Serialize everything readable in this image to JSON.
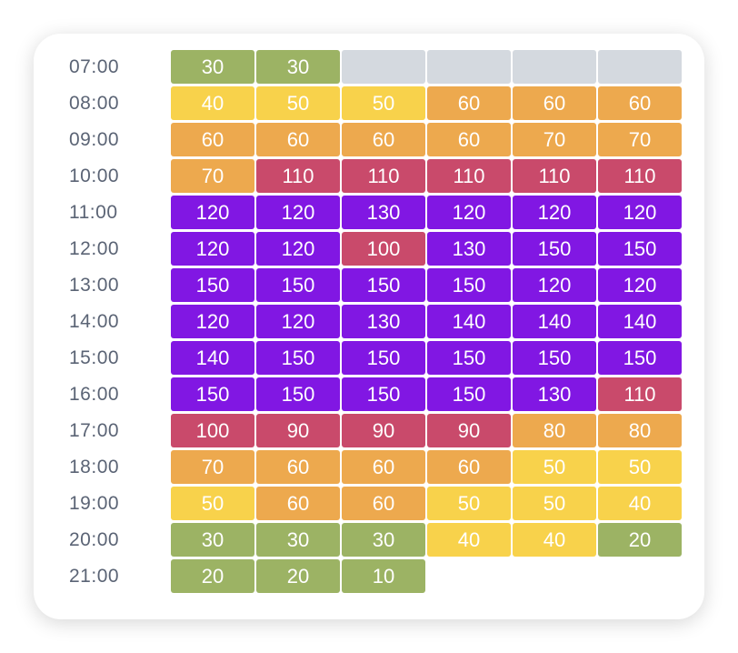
{
  "colors": {
    "green": "#9cb364",
    "yellow": "#f8d24b",
    "orange": "#eda94e",
    "red": "#c94a6b",
    "purple": "#8117e3",
    "gray": "#d4d9df"
  },
  "rows": [
    {
      "time": "07:00",
      "cells": [
        {
          "v": "30",
          "c": "green"
        },
        {
          "v": "30",
          "c": "green"
        },
        {
          "v": "",
          "c": "gray"
        },
        {
          "v": "",
          "c": "gray"
        },
        {
          "v": "",
          "c": "gray"
        },
        {
          "v": "",
          "c": "gray"
        }
      ]
    },
    {
      "time": "08:00",
      "cells": [
        {
          "v": "40",
          "c": "yellow"
        },
        {
          "v": "50",
          "c": "yellow"
        },
        {
          "v": "50",
          "c": "yellow"
        },
        {
          "v": "60",
          "c": "orange"
        },
        {
          "v": "60",
          "c": "orange"
        },
        {
          "v": "60",
          "c": "orange"
        }
      ]
    },
    {
      "time": "09:00",
      "cells": [
        {
          "v": "60",
          "c": "orange"
        },
        {
          "v": "60",
          "c": "orange"
        },
        {
          "v": "60",
          "c": "orange"
        },
        {
          "v": "60",
          "c": "orange"
        },
        {
          "v": "70",
          "c": "orange"
        },
        {
          "v": "70",
          "c": "orange"
        }
      ]
    },
    {
      "time": "10:00",
      "cells": [
        {
          "v": "70",
          "c": "orange"
        },
        {
          "v": "110",
          "c": "red"
        },
        {
          "v": "110",
          "c": "red"
        },
        {
          "v": "110",
          "c": "red"
        },
        {
          "v": "110",
          "c": "red"
        },
        {
          "v": "110",
          "c": "red"
        }
      ]
    },
    {
      "time": "11:00",
      "cells": [
        {
          "v": "120",
          "c": "purple"
        },
        {
          "v": "120",
          "c": "purple"
        },
        {
          "v": "130",
          "c": "purple"
        },
        {
          "v": "120",
          "c": "purple"
        },
        {
          "v": "120",
          "c": "purple"
        },
        {
          "v": "120",
          "c": "purple"
        }
      ]
    },
    {
      "time": "12:00",
      "cells": [
        {
          "v": "120",
          "c": "purple"
        },
        {
          "v": "120",
          "c": "purple"
        },
        {
          "v": "100",
          "c": "red"
        },
        {
          "v": "130",
          "c": "purple"
        },
        {
          "v": "150",
          "c": "purple"
        },
        {
          "v": "150",
          "c": "purple"
        }
      ]
    },
    {
      "time": "13:00",
      "cells": [
        {
          "v": "150",
          "c": "purple"
        },
        {
          "v": "150",
          "c": "purple"
        },
        {
          "v": "150",
          "c": "purple"
        },
        {
          "v": "150",
          "c": "purple"
        },
        {
          "v": "120",
          "c": "purple"
        },
        {
          "v": "120",
          "c": "purple"
        }
      ]
    },
    {
      "time": "14:00",
      "cells": [
        {
          "v": "120",
          "c": "purple"
        },
        {
          "v": "120",
          "c": "purple"
        },
        {
          "v": "130",
          "c": "purple"
        },
        {
          "v": "140",
          "c": "purple"
        },
        {
          "v": "140",
          "c": "purple"
        },
        {
          "v": "140",
          "c": "purple"
        }
      ]
    },
    {
      "time": "15:00",
      "cells": [
        {
          "v": "140",
          "c": "purple"
        },
        {
          "v": "150",
          "c": "purple"
        },
        {
          "v": "150",
          "c": "purple"
        },
        {
          "v": "150",
          "c": "purple"
        },
        {
          "v": "150",
          "c": "purple"
        },
        {
          "v": "150",
          "c": "purple"
        }
      ]
    },
    {
      "time": "16:00",
      "cells": [
        {
          "v": "150",
          "c": "purple"
        },
        {
          "v": "150",
          "c": "purple"
        },
        {
          "v": "150",
          "c": "purple"
        },
        {
          "v": "150",
          "c": "purple"
        },
        {
          "v": "130",
          "c": "purple"
        },
        {
          "v": "110",
          "c": "red"
        }
      ]
    },
    {
      "time": "17:00",
      "cells": [
        {
          "v": "100",
          "c": "red"
        },
        {
          "v": "90",
          "c": "red"
        },
        {
          "v": "90",
          "c": "red"
        },
        {
          "v": "90",
          "c": "red"
        },
        {
          "v": "80",
          "c": "orange"
        },
        {
          "v": "80",
          "c": "orange"
        }
      ]
    },
    {
      "time": "18:00",
      "cells": [
        {
          "v": "70",
          "c": "orange"
        },
        {
          "v": "60",
          "c": "orange"
        },
        {
          "v": "60",
          "c": "orange"
        },
        {
          "v": "60",
          "c": "orange"
        },
        {
          "v": "50",
          "c": "yellow"
        },
        {
          "v": "50",
          "c": "yellow"
        }
      ]
    },
    {
      "time": "19:00",
      "cells": [
        {
          "v": "50",
          "c": "yellow"
        },
        {
          "v": "60",
          "c": "orange"
        },
        {
          "v": "60",
          "c": "orange"
        },
        {
          "v": "50",
          "c": "yellow"
        },
        {
          "v": "50",
          "c": "yellow"
        },
        {
          "v": "40",
          "c": "yellow"
        }
      ]
    },
    {
      "time": "20:00",
      "cells": [
        {
          "v": "30",
          "c": "green"
        },
        {
          "v": "30",
          "c": "green"
        },
        {
          "v": "30",
          "c": "green"
        },
        {
          "v": "40",
          "c": "yellow"
        },
        {
          "v": "40",
          "c": "yellow"
        },
        {
          "v": "20",
          "c": "green"
        }
      ]
    },
    {
      "time": "21:00",
      "cells": [
        {
          "v": "20",
          "c": "green"
        },
        {
          "v": "20",
          "c": "green"
        },
        {
          "v": "10",
          "c": "green"
        }
      ]
    }
  ]
}
